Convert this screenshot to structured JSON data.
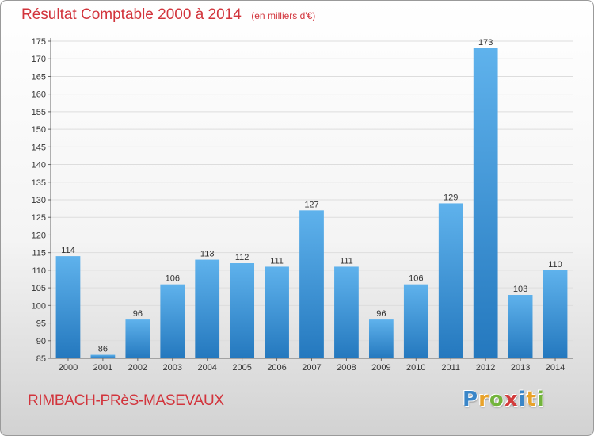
{
  "colors": {
    "title": "#d2343c",
    "bar_light": "#5fb2ec",
    "bar_dark": "#2478be",
    "gridline": "#dddddd"
  },
  "header": {
    "title": "Résultat Comptable 2000 à 2014",
    "subtitle": "(en milliers d'€)"
  },
  "footer": {
    "town": "RIMBACH-PRèS-MASEVAUX",
    "brand": "Proxiti",
    "brand_letters": [
      {
        "char": "P",
        "color": "#3a86c8"
      },
      {
        "char": "r",
        "color": "#e8a22a"
      },
      {
        "char": "o",
        "color": "#73b43c"
      },
      {
        "char": "x",
        "color": "#d23c3c"
      },
      {
        "char": "i",
        "color": "#3a86c8"
      },
      {
        "char": "t",
        "color": "#e8a22a"
      },
      {
        "char": "i",
        "color": "#73b43c"
      }
    ]
  },
  "chart_data": {
    "type": "bar",
    "title": "Résultat Comptable 2000 à 2014",
    "subtitle": "(en milliers d'€)",
    "xlabel": "",
    "ylabel": "",
    "categories": [
      "2000",
      "2001",
      "2002",
      "2003",
      "2004",
      "2005",
      "2006",
      "2007",
      "2008",
      "2009",
      "2010",
      "2011",
      "2012",
      "2013",
      "2014"
    ],
    "values": [
      114,
      86,
      96,
      106,
      113,
      112,
      111,
      127,
      111,
      96,
      106,
      129,
      173,
      103,
      110
    ],
    "ylim": [
      85,
      175
    ],
    "yticks": [
      85,
      90,
      95,
      100,
      105,
      110,
      115,
      120,
      125,
      130,
      135,
      140,
      145,
      150,
      155,
      160,
      165,
      170,
      175
    ],
    "grid": true
  }
}
